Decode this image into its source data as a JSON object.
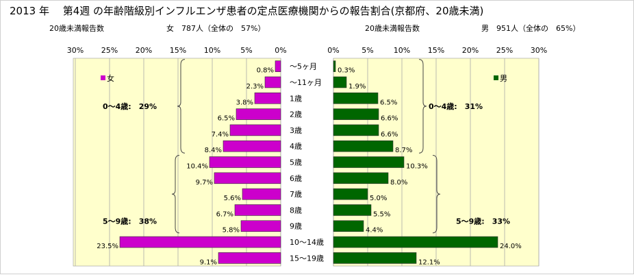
{
  "title": "2013 年　 第4週 の年齢階級別インフルエンザ患者の定点医療機関からの報告割合(京都府、20歳未満)",
  "left_header": {
    "label": "20歳未満報告数",
    "summary": "女　787人（全体の　57%）"
  },
  "right_header": {
    "label": "20歳未満報告数",
    "summary": "男　951人（全体の　65%）"
  },
  "colors": {
    "female": "#cc00cc",
    "male": "#006600",
    "plot_bg": "#ffffcc",
    "gridline": "#aaaaaa"
  },
  "chart_data": [
    {
      "type": "bar",
      "orientation": "horizontal",
      "direction": "right-to-left",
      "categories": [
        "〜5ヶ月",
        "〜11ヶ月",
        "1歳",
        "2歳",
        "3歳",
        "4歳",
        "5歳",
        "6歳",
        "7歳",
        "8歳",
        "9歳",
        "10〜14歳",
        "15〜19歳"
      ],
      "series": [
        {
          "name": "女",
          "values": [
            0.8,
            2.3,
            3.8,
            6.5,
            7.4,
            8.4,
            10.4,
            9.7,
            5.6,
            6.7,
            5.8,
            23.5,
            9.1
          ]
        }
      ],
      "data_labels": [
        "0.8%",
        "2.3%",
        "3.8%",
        "6.5%",
        "7.4%",
        "8.4%",
        "10.4%",
        "9.7%",
        "5.6%",
        "6.7%",
        "5.8%",
        "23.5%",
        "9.1%"
      ],
      "xlim": [
        0,
        30
      ],
      "xticks": [
        30,
        25,
        20,
        15,
        10,
        5,
        0
      ],
      "xtick_labels": [
        "30%",
        "25%",
        "20%",
        "15%",
        "10%",
        "5%",
        "0%"
      ],
      "grid": true,
      "legend_position": "top-left",
      "group_labels": [
        {
          "text": "0〜4歳:　29%",
          "from": 0,
          "to": 5
        },
        {
          "text": "5〜9歳:　38%",
          "from": 6,
          "to": 10
        }
      ]
    },
    {
      "type": "bar",
      "orientation": "horizontal",
      "direction": "left-to-right",
      "categories": [
        "〜5ヶ月",
        "〜11ヶ月",
        "1歳",
        "2歳",
        "3歳",
        "4歳",
        "5歳",
        "6歳",
        "7歳",
        "8歳",
        "9歳",
        "10〜14歳",
        "15〜19歳"
      ],
      "series": [
        {
          "name": "男",
          "values": [
            0.3,
            1.9,
            6.5,
            6.6,
            6.6,
            8.7,
            10.3,
            8.0,
            5.0,
            5.5,
            4.4,
            24.0,
            12.1
          ]
        }
      ],
      "data_labels": [
        "0.3%",
        "1.9%",
        "6.5%",
        "6.6%",
        "6.6%",
        "8.7%",
        "10.3%",
        "8.0%",
        "5.0%",
        "5.5%",
        "4.4%",
        "24.0%",
        "12.1%"
      ],
      "xlim": [
        0,
        30
      ],
      "xticks": [
        0,
        5,
        10,
        15,
        20,
        25,
        30
      ],
      "xtick_labels": [
        "0%",
        "5%",
        "10%",
        "15%",
        "20%",
        "25%",
        "30%"
      ],
      "grid": true,
      "legend_position": "top-right",
      "group_labels": [
        {
          "text": "0〜4歳:　31%",
          "from": 0,
          "to": 5
        },
        {
          "text": "5〜9歳:　33%",
          "from": 6,
          "to": 10
        }
      ]
    }
  ]
}
